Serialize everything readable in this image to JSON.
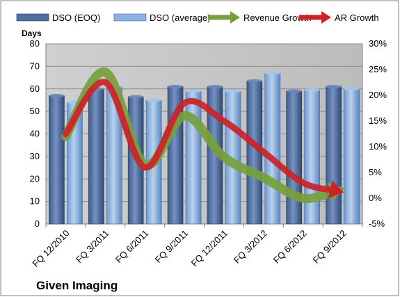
{
  "chart_data": {
    "type": "bar",
    "title": "",
    "company": "Given Imaging",
    "ylabel": "Days",
    "y2label": "",
    "categories": [
      "FQ 12/2010",
      "FQ 3/2011",
      "FQ 6/2011",
      "FQ 9/2011",
      "FQ 12/2011",
      "FQ 3/2012",
      "FQ 6/2012",
      "FQ 9/2012"
    ],
    "ylim": [
      0,
      80
    ],
    "y_ticks": [
      0,
      10,
      20,
      30,
      40,
      50,
      60,
      70,
      80
    ],
    "y2lim": [
      -5,
      30
    ],
    "y2_ticks": [
      "-5%",
      "0%",
      "5%",
      "10%",
      "15%",
      "20%",
      "25%",
      "30%"
    ],
    "y2_tick_values": [
      -5,
      0,
      5,
      10,
      15,
      20,
      25,
      30
    ],
    "grid": true,
    "legend_position": "top",
    "series": [
      {
        "name": "DSO (EOQ)",
        "kind": "bar",
        "axis": "left",
        "color": "#4f6f9f",
        "values": [
          57,
          60,
          56.5,
          61,
          61,
          63.5,
          59,
          61
        ]
      },
      {
        "name": "DSO (average)",
        "kind": "bar",
        "axis": "left",
        "color": "#8db3e2",
        "values": [
          54,
          61,
          55,
          59,
          59,
          67,
          59.5,
          60
        ]
      },
      {
        "name": "Revenue Growth",
        "kind": "line",
        "axis": "right",
        "color": "#77a03c",
        "values": [
          12,
          24.5,
          6.5,
          16,
          8,
          4,
          0,
          1.5
        ]
      },
      {
        "name": "AR Growth",
        "kind": "line",
        "axis": "right",
        "color": "#cc2229",
        "values": [
          12.5,
          22.5,
          6,
          18.5,
          15,
          9,
          3,
          1.5
        ]
      }
    ]
  }
}
